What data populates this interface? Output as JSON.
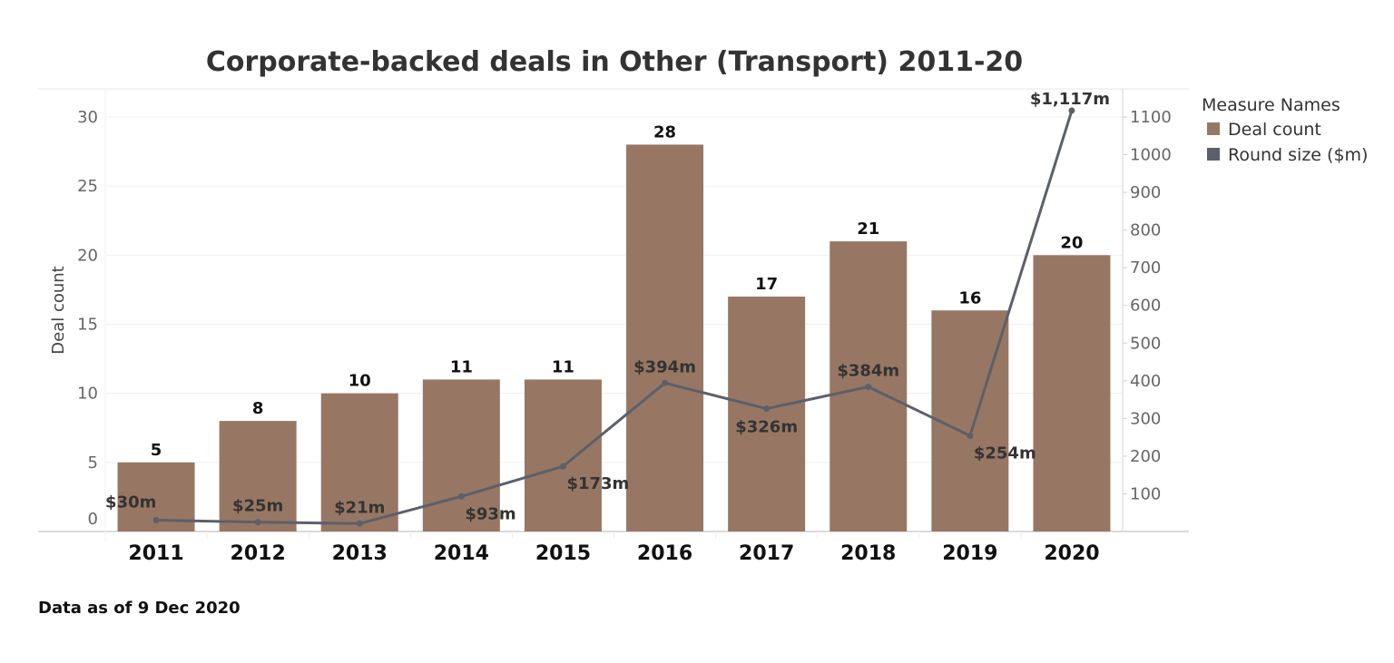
{
  "chart_data": {
    "type": "bar",
    "title": "Corporate-backed deals in Other (Transport) 2011-20",
    "categories": [
      "2011",
      "2012",
      "2013",
      "2014",
      "2015",
      "2016",
      "2017",
      "2018",
      "2019",
      "2020"
    ],
    "series": [
      {
        "name": "Deal count",
        "type": "bar",
        "axis": "left",
        "color": "#977763",
        "values": [
          5,
          8,
          10,
          11,
          11,
          28,
          17,
          21,
          16,
          20
        ],
        "labels": [
          "5",
          "8",
          "10",
          "11",
          "11",
          "28",
          "17",
          "21",
          "16",
          "20"
        ]
      },
      {
        "name": "Round size ($m)",
        "type": "line",
        "axis": "right",
        "color": "#5b606b",
        "values": [
          30,
          25,
          21,
          93,
          173,
          394,
          326,
          384,
          254,
          1117
        ],
        "labels": [
          "$30m",
          "$25m",
          "$21m",
          "$93m",
          "$173m",
          "$394m",
          "$326m",
          "$384m",
          "$254m",
          "$1,117m"
        ],
        "label_positions": [
          "above",
          "above",
          "above",
          "below",
          "below",
          "above",
          "below",
          "above",
          "below",
          "above"
        ]
      }
    ],
    "xlabel": "",
    "ylabel": "Deal count",
    "ylim": [
      0,
      30
    ],
    "yticks": [
      "0",
      "5",
      "10",
      "15",
      "20",
      "25",
      "30"
    ],
    "ylabel_right": "",
    "ylim_right": [
      0,
      1100
    ],
    "yticks_right": [
      "100",
      "200",
      "300",
      "400",
      "500",
      "600",
      "700",
      "800",
      "900",
      "1000",
      "1100"
    ],
    "grid": true,
    "legend": {
      "title": "Measure Names",
      "position": "top-right",
      "items": [
        {
          "label": "Deal count",
          "color": "#977763"
        },
        {
          "label": "Round size ($m)",
          "color": "#5b606b"
        }
      ]
    }
  },
  "footnote": "Data as of 9 Dec 2020"
}
